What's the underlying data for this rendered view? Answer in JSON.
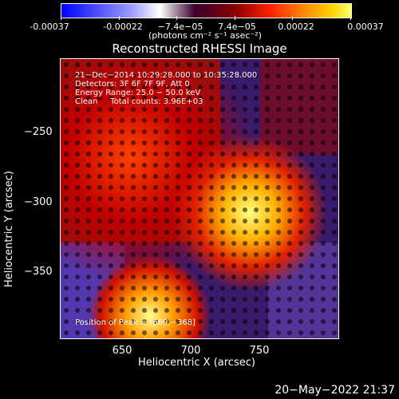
{
  "colorbar": {
    "tick_labels": [
      "-0.00037",
      "-0.00022",
      "−7.4e−05",
      "7.4e−05",
      "0.00022",
      "0.00037"
    ],
    "unit_label": "(photons cm⁻² s⁻¹ asec⁻²)"
  },
  "title": "Reconstructed RHESSI Image",
  "annotations": {
    "line1": "21−Dec−2014 10:29:28.000 to 10:35:28.000",
    "line2": "Detectors: 3F 6F 7F 9F, Att 0",
    "line3": "Energy Range: 25.0 − 50.0 keV",
    "line4": "Clean     Total counts: 3.96E+03",
    "peak": "Position of Peak = [669,−368]"
  },
  "axes": {
    "xlabel": "Heliocentric X (arcsec)",
    "ylabel": "Heliocentric Y (arcsec)",
    "x_ticks": [
      "650",
      "700",
      "750"
    ],
    "y_ticks": [
      "−250",
      "−300",
      "−350"
    ]
  },
  "timestamp": "20−May−2022 21:37",
  "colors": {
    "background": "#000000",
    "frame": "#ffffff"
  }
}
